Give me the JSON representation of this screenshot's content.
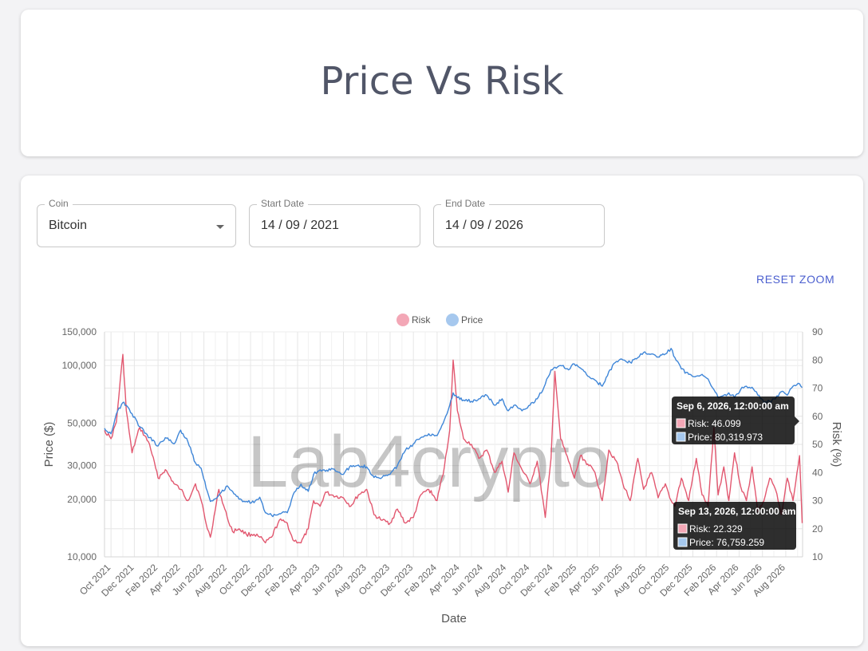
{
  "page": {
    "title": "Price Vs Risk"
  },
  "controls": {
    "coin": {
      "label": "Coin",
      "value": "Bitcoin"
    },
    "start_date": {
      "label": "Start Date",
      "value": "14 / 09 / 2021"
    },
    "end_date": {
      "label": "End Date",
      "value": "14 / 09 / 2026"
    },
    "reset_zoom": "RESET ZOOM"
  },
  "colors": {
    "risk": "#e2576f",
    "price": "#3f86d8",
    "risk_legend": "#f3a7b6",
    "price_legend": "#a6c8ee"
  },
  "watermark": "Lab4crypto",
  "tooltips": [
    {
      "title": "Sep 6, 2026, 12:00:00 am",
      "lines": [
        "Risk: 46.099",
        "Price: 80,319.973"
      ]
    },
    {
      "title": "Sep 13, 2026, 12:00:00 am",
      "lines": [
        "Risk: 22.329",
        "Price: 76,759.259"
      ]
    }
  ],
  "chart_data": {
    "type": "line",
    "xlabel": "Date",
    "y_left_label": "Price ($)",
    "y_right_label": "Risk (%)",
    "y_left_scale": "log",
    "y_left_lim": [
      10000,
      150000
    ],
    "y_right_lim": [
      10,
      90
    ],
    "y_left_ticks": [
      "10,000",
      "20,000",
      "30,000",
      "50,000",
      "100,000",
      "150,000"
    ],
    "y_right_ticks": [
      "10",
      "20",
      "30",
      "40",
      "50",
      "60",
      "70",
      "80",
      "90"
    ],
    "x_ticks": [
      "Oct 2021",
      "Dec 2021",
      "Feb 2022",
      "Apr 2022",
      "Jun 2022",
      "Aug 2022",
      "Oct 2022",
      "Dec 2022",
      "Feb 2023",
      "Apr 2023",
      "Jun 2023",
      "Aug 2023",
      "Oct 2023",
      "Dec 2023",
      "Feb 2024",
      "Apr 2024",
      "Jun 2024",
      "Aug 2024",
      "Oct 2024",
      "Dec 2024",
      "Feb 2025",
      "Apr 2025",
      "Jun 2025",
      "Aug 2025",
      "Oct 2025",
      "Dec 2025",
      "Feb 2026",
      "Apr 2026",
      "Jun 2026",
      "Aug 2026"
    ],
    "grid": true,
    "legend": "top-center",
    "series": [
      {
        "name": "Risk",
        "axis": "right",
        "x": [
          "2021-09-14",
          "2021-10-01",
          "2021-10-15",
          "2021-11-01",
          "2021-11-10",
          "2021-11-25",
          "2021-12-15",
          "2022-01-10",
          "2022-02-01",
          "2022-02-20",
          "2022-03-15",
          "2022-04-01",
          "2022-04-20",
          "2022-05-10",
          "2022-05-25",
          "2022-06-10",
          "2022-06-18",
          "2022-07-10",
          "2022-08-01",
          "2022-08-15",
          "2022-09-01",
          "2022-09-20",
          "2022-10-10",
          "2022-10-25",
          "2022-11-09",
          "2022-11-25",
          "2022-12-15",
          "2023-01-05",
          "2023-01-20",
          "2023-02-10",
          "2023-03-01",
          "2023-03-15",
          "2023-04-01",
          "2023-04-15",
          "2023-05-01",
          "2023-06-01",
          "2023-06-20",
          "2023-07-10",
          "2023-08-01",
          "2023-08-20",
          "2023-09-10",
          "2023-10-01",
          "2023-10-20",
          "2023-11-10",
          "2023-12-01",
          "2023-12-20",
          "2024-01-10",
          "2024-02-01",
          "2024-02-20",
          "2024-03-05",
          "2024-03-14",
          "2024-03-25",
          "2024-04-10",
          "2024-05-01",
          "2024-05-20",
          "2024-06-10",
          "2024-07-01",
          "2024-07-20",
          "2024-08-05",
          "2024-08-20",
          "2024-09-10",
          "2024-10-01",
          "2024-10-20",
          "2024-11-10",
          "2024-11-25",
          "2024-12-05",
          "2024-12-20",
          "2025-01-10",
          "2025-01-25",
          "2025-02-10",
          "2025-03-01",
          "2025-03-20",
          "2025-04-08",
          "2025-04-25",
          "2025-05-15",
          "2025-06-01",
          "2025-06-20",
          "2025-07-10",
          "2025-07-25",
          "2025-08-15",
          "2025-09-01",
          "2025-09-20",
          "2025-10-05",
          "2025-10-15",
          "2025-11-01",
          "2025-11-20",
          "2025-12-10",
          "2025-12-25",
          "2026-01-10",
          "2026-01-25",
          "2026-02-05",
          "2026-02-20",
          "2026-03-05",
          "2026-03-20",
          "2026-04-05",
          "2026-04-20",
          "2026-05-05",
          "2026-05-20",
          "2026-06-05",
          "2026-06-20",
          "2026-07-05",
          "2026-07-20",
          "2026-08-05",
          "2026-08-20",
          "2026-09-06",
          "2026-09-13"
        ],
        "values": [
          55,
          52,
          58,
          82,
          62,
          47,
          56,
          50,
          38,
          41,
          36,
          34,
          30,
          36,
          30,
          20,
          17,
          34,
          24,
          19,
          20,
          18,
          18,
          17,
          15,
          17,
          23,
          22,
          16,
          15,
          20,
          30,
          28,
          33,
          32,
          31,
          28,
          32,
          34,
          25,
          23,
          22,
          27,
          22,
          24,
          32,
          34,
          30,
          42,
          55,
          80,
          62,
          52,
          50,
          45,
          48,
          40,
          44,
          33,
          47,
          41,
          36,
          44,
          24,
          45,
          76,
          52,
          44,
          38,
          46,
          43,
          40,
          30,
          48,
          44,
          36,
          30,
          45,
          34,
          40,
          31,
          36,
          30,
          28,
          38,
          30,
          45,
          32,
          28,
          56,
          32,
          42,
          30,
          47,
          35,
          30,
          42,
          26,
          30,
          38,
          34,
          25,
          38,
          30,
          46,
          22
        ]
      },
      {
        "name": "Price",
        "axis": "left",
        "x": [
          "2021-09-14",
          "2021-10-01",
          "2021-10-15",
          "2021-11-01",
          "2021-11-10",
          "2021-11-25",
          "2021-12-15",
          "2022-01-10",
          "2022-02-01",
          "2022-02-20",
          "2022-03-15",
          "2022-04-01",
          "2022-04-20",
          "2022-05-10",
          "2022-05-25",
          "2022-06-10",
          "2022-06-18",
          "2022-07-10",
          "2022-08-01",
          "2022-08-15",
          "2022-09-01",
          "2022-09-20",
          "2022-10-10",
          "2022-10-25",
          "2022-11-09",
          "2022-11-25",
          "2022-12-15",
          "2023-01-05",
          "2023-01-20",
          "2023-02-10",
          "2023-03-01",
          "2023-03-15",
          "2023-04-01",
          "2023-04-15",
          "2023-05-01",
          "2023-06-01",
          "2023-06-20",
          "2023-07-10",
          "2023-08-01",
          "2023-08-20",
          "2023-09-10",
          "2023-10-01",
          "2023-10-20",
          "2023-11-10",
          "2023-12-01",
          "2023-12-20",
          "2024-01-10",
          "2024-02-01",
          "2024-02-20",
          "2024-03-05",
          "2024-03-14",
          "2024-03-25",
          "2024-04-10",
          "2024-05-01",
          "2024-05-20",
          "2024-06-10",
          "2024-07-01",
          "2024-07-20",
          "2024-08-05",
          "2024-08-20",
          "2024-09-10",
          "2024-10-01",
          "2024-10-20",
          "2024-11-10",
          "2024-11-25",
          "2024-12-05",
          "2024-12-20",
          "2025-01-10",
          "2025-01-25",
          "2025-02-10",
          "2025-03-01",
          "2025-03-20",
          "2025-04-08",
          "2025-04-25",
          "2025-05-15",
          "2025-06-01",
          "2025-06-20",
          "2025-07-10",
          "2025-07-25",
          "2025-08-15",
          "2025-09-01",
          "2025-09-20",
          "2025-10-05",
          "2025-10-15",
          "2025-11-01",
          "2025-11-20",
          "2025-12-10",
          "2025-12-25",
          "2026-01-10",
          "2026-01-25",
          "2026-02-05",
          "2026-02-20",
          "2026-03-05",
          "2026-03-20",
          "2026-04-05",
          "2026-04-20",
          "2026-05-05",
          "2026-05-20",
          "2026-06-05",
          "2026-06-20",
          "2026-07-05",
          "2026-07-20",
          "2026-08-05",
          "2026-08-20",
          "2026-09-06",
          "2026-09-13"
        ],
        "values": [
          47000,
          44000,
          56000,
          64000,
          62000,
          56000,
          48000,
          42000,
          38000,
          42000,
          39000,
          46000,
          40000,
          31000,
          29000,
          22000,
          19500,
          21000,
          23500,
          22000,
          20000,
          19500,
          19200,
          20500,
          17000,
          16500,
          16800,
          17000,
          21000,
          24000,
          22000,
          27000,
          28500,
          28000,
          29000,
          27000,
          30000,
          30200,
          29500,
          26000,
          26000,
          27000,
          30000,
          36000,
          39000,
          42000,
          44000,
          43000,
          52000,
          62000,
          72000,
          68000,
          66000,
          65000,
          67000,
          70000,
          62000,
          67000,
          58000,
          62000,
          58000,
          62000,
          67000,
          80000,
          95000,
          98000,
          100000,
          95000,
          102000,
          97000,
          88000,
          84000,
          78000,
          93000,
          105000,
          107000,
          104000,
          110000,
          117000,
          115000,
          111000,
          115000,
          123000,
          110000,
          96000,
          90000,
          88000,
          90000,
          85000,
          75000,
          68000,
          70000,
          72000,
          68000,
          75000,
          78000,
          77000,
          70000,
          64000,
          65000,
          67000,
          73000,
          70000,
          78000,
          80320,
          76759
        ]
      }
    ]
  }
}
